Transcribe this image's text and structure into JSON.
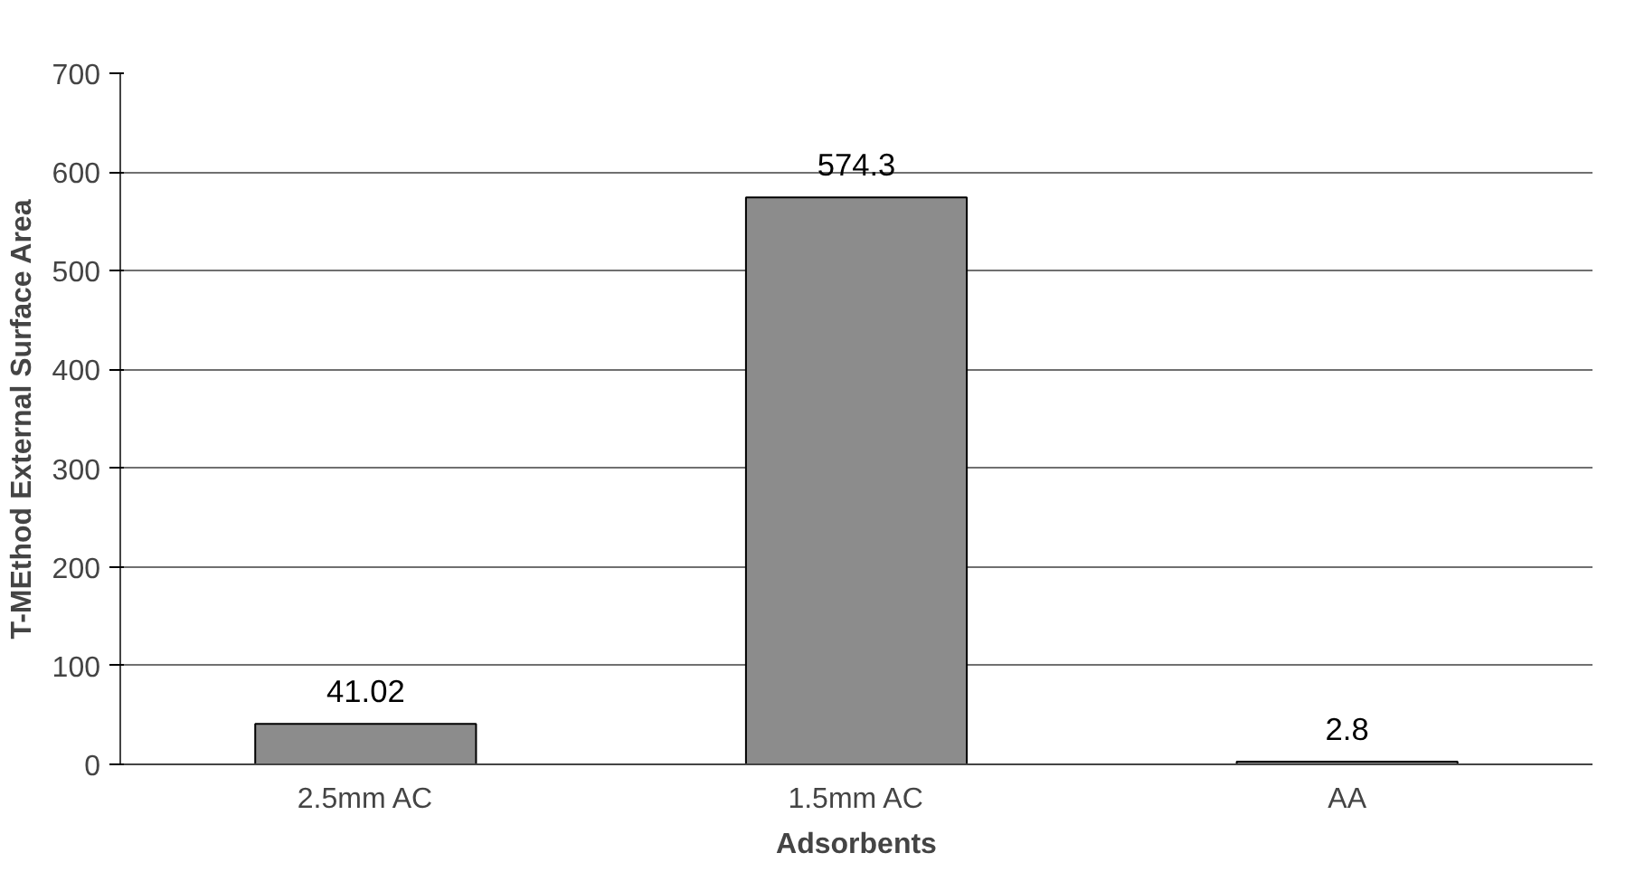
{
  "chart_data": {
    "type": "bar",
    "xlabel": "Adsorbents",
    "ylabel": "T-MEthod External Surface Area",
    "categories": [
      "2.5mm AC",
      "1.5mm AC",
      "AA"
    ],
    "values": [
      41.02,
      574.3,
      2.8
    ],
    "color": "#8c8c8c",
    "ylim": [
      0,
      700
    ],
    "yticks": [
      0,
      100,
      200,
      300,
      400,
      500,
      600,
      700
    ],
    "grid": "y",
    "data_labels": true
  }
}
